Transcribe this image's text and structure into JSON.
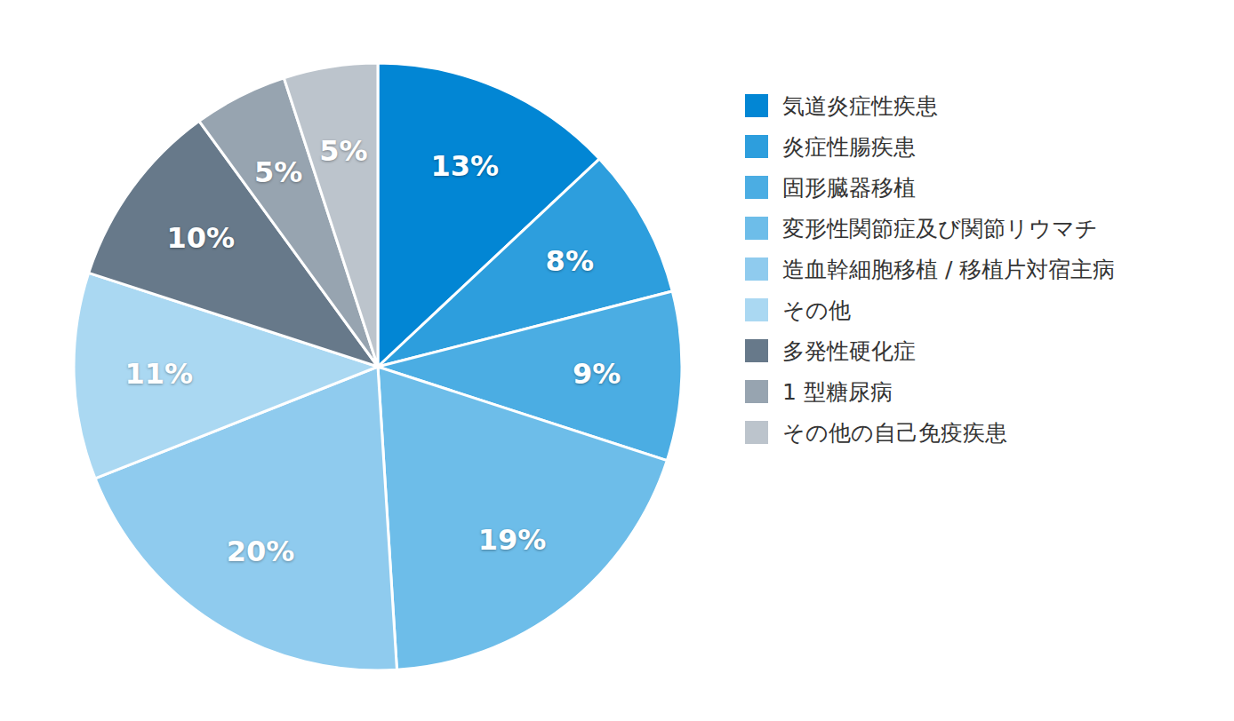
{
  "chart_data": {
    "type": "pie",
    "categories": [
      "気道炎症性疾患",
      "炎症性腸疾患",
      "固形臓器移植",
      "変形性関節症及び関節リウマチ",
      "造血幹細胞移植 / 移植片対宿主病",
      "その他",
      "多発性硬化症",
      "1 型糖尿病",
      "その他の自己免疫疾患"
    ],
    "values": [
      13,
      8,
      9,
      19,
      20,
      11,
      10,
      5,
      5
    ],
    "value_labels": [
      "13%",
      "8%",
      "9%",
      "19%",
      "20%",
      "11%",
      "10%",
      "5%",
      "5%"
    ],
    "colors": [
      "#0286d4",
      "#2d9edd",
      "#4badE3",
      "#6dbde9",
      "#8fcbee",
      "#aad8f2",
      "#67798a",
      "#97a4b0",
      "#bcc4cc"
    ],
    "data_labels": true,
    "legend": "right"
  }
}
